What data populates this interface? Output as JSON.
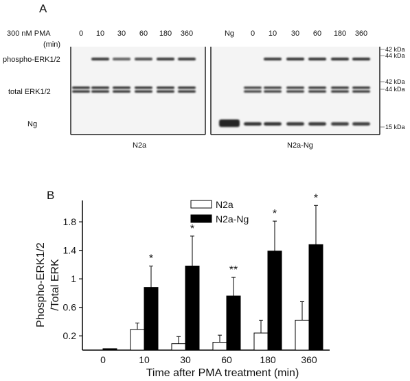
{
  "panel_a": {
    "label": "A",
    "treatment_header": "300 nM PMA",
    "treatment_unit": "(min)",
    "row_labels": [
      "phospho-ERK1/2",
      "total ERK1/2",
      "Ng"
    ],
    "left_blot": {
      "cell_line": "N2a",
      "lanes": [
        "0",
        "10",
        "30",
        "60",
        "180",
        "360"
      ],
      "phospho_intensity": [
        0.0,
        0.85,
        0.55,
        0.7,
        0.85,
        0.9
      ],
      "total_intensity": [
        1,
        1,
        1,
        1,
        1,
        1
      ],
      "ng_intensity": [
        0,
        0,
        0,
        0,
        0,
        0
      ]
    },
    "right_blot": {
      "cell_line": "N2a-Ng",
      "lanes": [
        "Ng",
        "0",
        "10",
        "30",
        "60",
        "180",
        "360"
      ],
      "phospho_intensity": [
        0,
        0.0,
        0.9,
        0.95,
        0.95,
        0.95,
        0.95
      ],
      "total_intensity": [
        0,
        0.8,
        0.85,
        0.85,
        0.9,
        0.9,
        0.9
      ],
      "ng_intensity": [
        1,
        0.9,
        0.9,
        0.85,
        0.85,
        0.8,
        0.8
      ]
    },
    "size_markers": {
      "phospho_top": "42 kDa",
      "phospho_bottom": "44 kDa",
      "total_top": "42 kDa",
      "total_bottom": "44 kDa",
      "ng": "15 kDa"
    }
  },
  "chart_data": {
    "type": "bar",
    "panel_label": "B",
    "categories": [
      "0",
      "10",
      "30",
      "60",
      "180",
      "360"
    ],
    "xlabel": "Time after PMA treatment (min)",
    "ylabel_line1": "Phospho-ERK1/2",
    "ylabel_line2": "/Total ERK",
    "ylim": [
      0,
      2.1
    ],
    "yticks": [
      0.2,
      0.6,
      1,
      1.4,
      1.8
    ],
    "ytick_labels": [
      "0.2",
      "0.6",
      "1",
      "1.4",
      "1.8"
    ],
    "legend_position": "top-center",
    "series": [
      {
        "name": "N2a",
        "color": "#ffffff",
        "values": [
          0.0,
          0.29,
          0.09,
          0.11,
          0.24,
          0.42
        ],
        "errors": [
          0,
          0.09,
          0.1,
          0.1,
          0.18,
          0.26
        ]
      },
      {
        "name": "N2a-Ng",
        "color": "#000000",
        "values": [
          0.02,
          0.88,
          1.18,
          0.76,
          1.39,
          1.48
        ],
        "errors": [
          0,
          0.3,
          0.42,
          0.26,
          0.42,
          0.55
        ]
      }
    ],
    "significance": [
      "",
      "*",
      "*",
      "**",
      "*",
      "*"
    ]
  }
}
